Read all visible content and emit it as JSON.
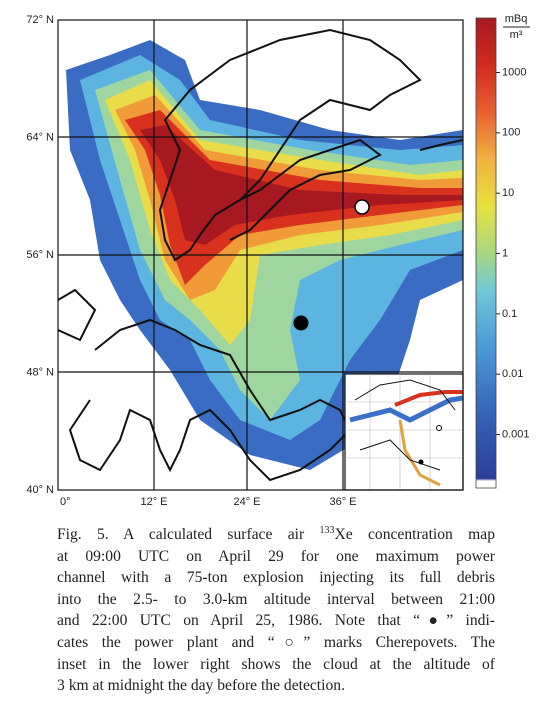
{
  "map": {
    "lat_labels": [
      "72° N",
      "64° N",
      "56° N",
      "48° N",
      "40° N"
    ],
    "lon_labels": [
      "0°",
      "12° E",
      "24° E",
      "36° E"
    ],
    "colorbar": {
      "unit_numerator": "mBq",
      "unit_denominator": "m³",
      "log": true,
      "lim": [
        0.00013,
        8000
      ],
      "ticks": [
        1000,
        100,
        10,
        1,
        0.1,
        0.01,
        0.001
      ]
    }
  },
  "caption": {
    "lead": "Fig. 5.  A calculated surface air ",
    "isotope_mass": "133",
    "lead_rest": "Xe concentration map",
    "lines": [
      "at 09:00 UTC on April 29 for one maximum power",
      "channel with a 75-ton explosion injecting its full debris",
      "into the 2.5- to 3.0-km altitude interval between 21:00",
      "and 22:00 UTC on April 25, 1986. Note that “●” indi-",
      "cates the power plant and “○” marks Cherepovets. The",
      "inset in the lower right shows the cloud at the altitude of",
      "3 km at midnight the day before the detection."
    ]
  }
}
